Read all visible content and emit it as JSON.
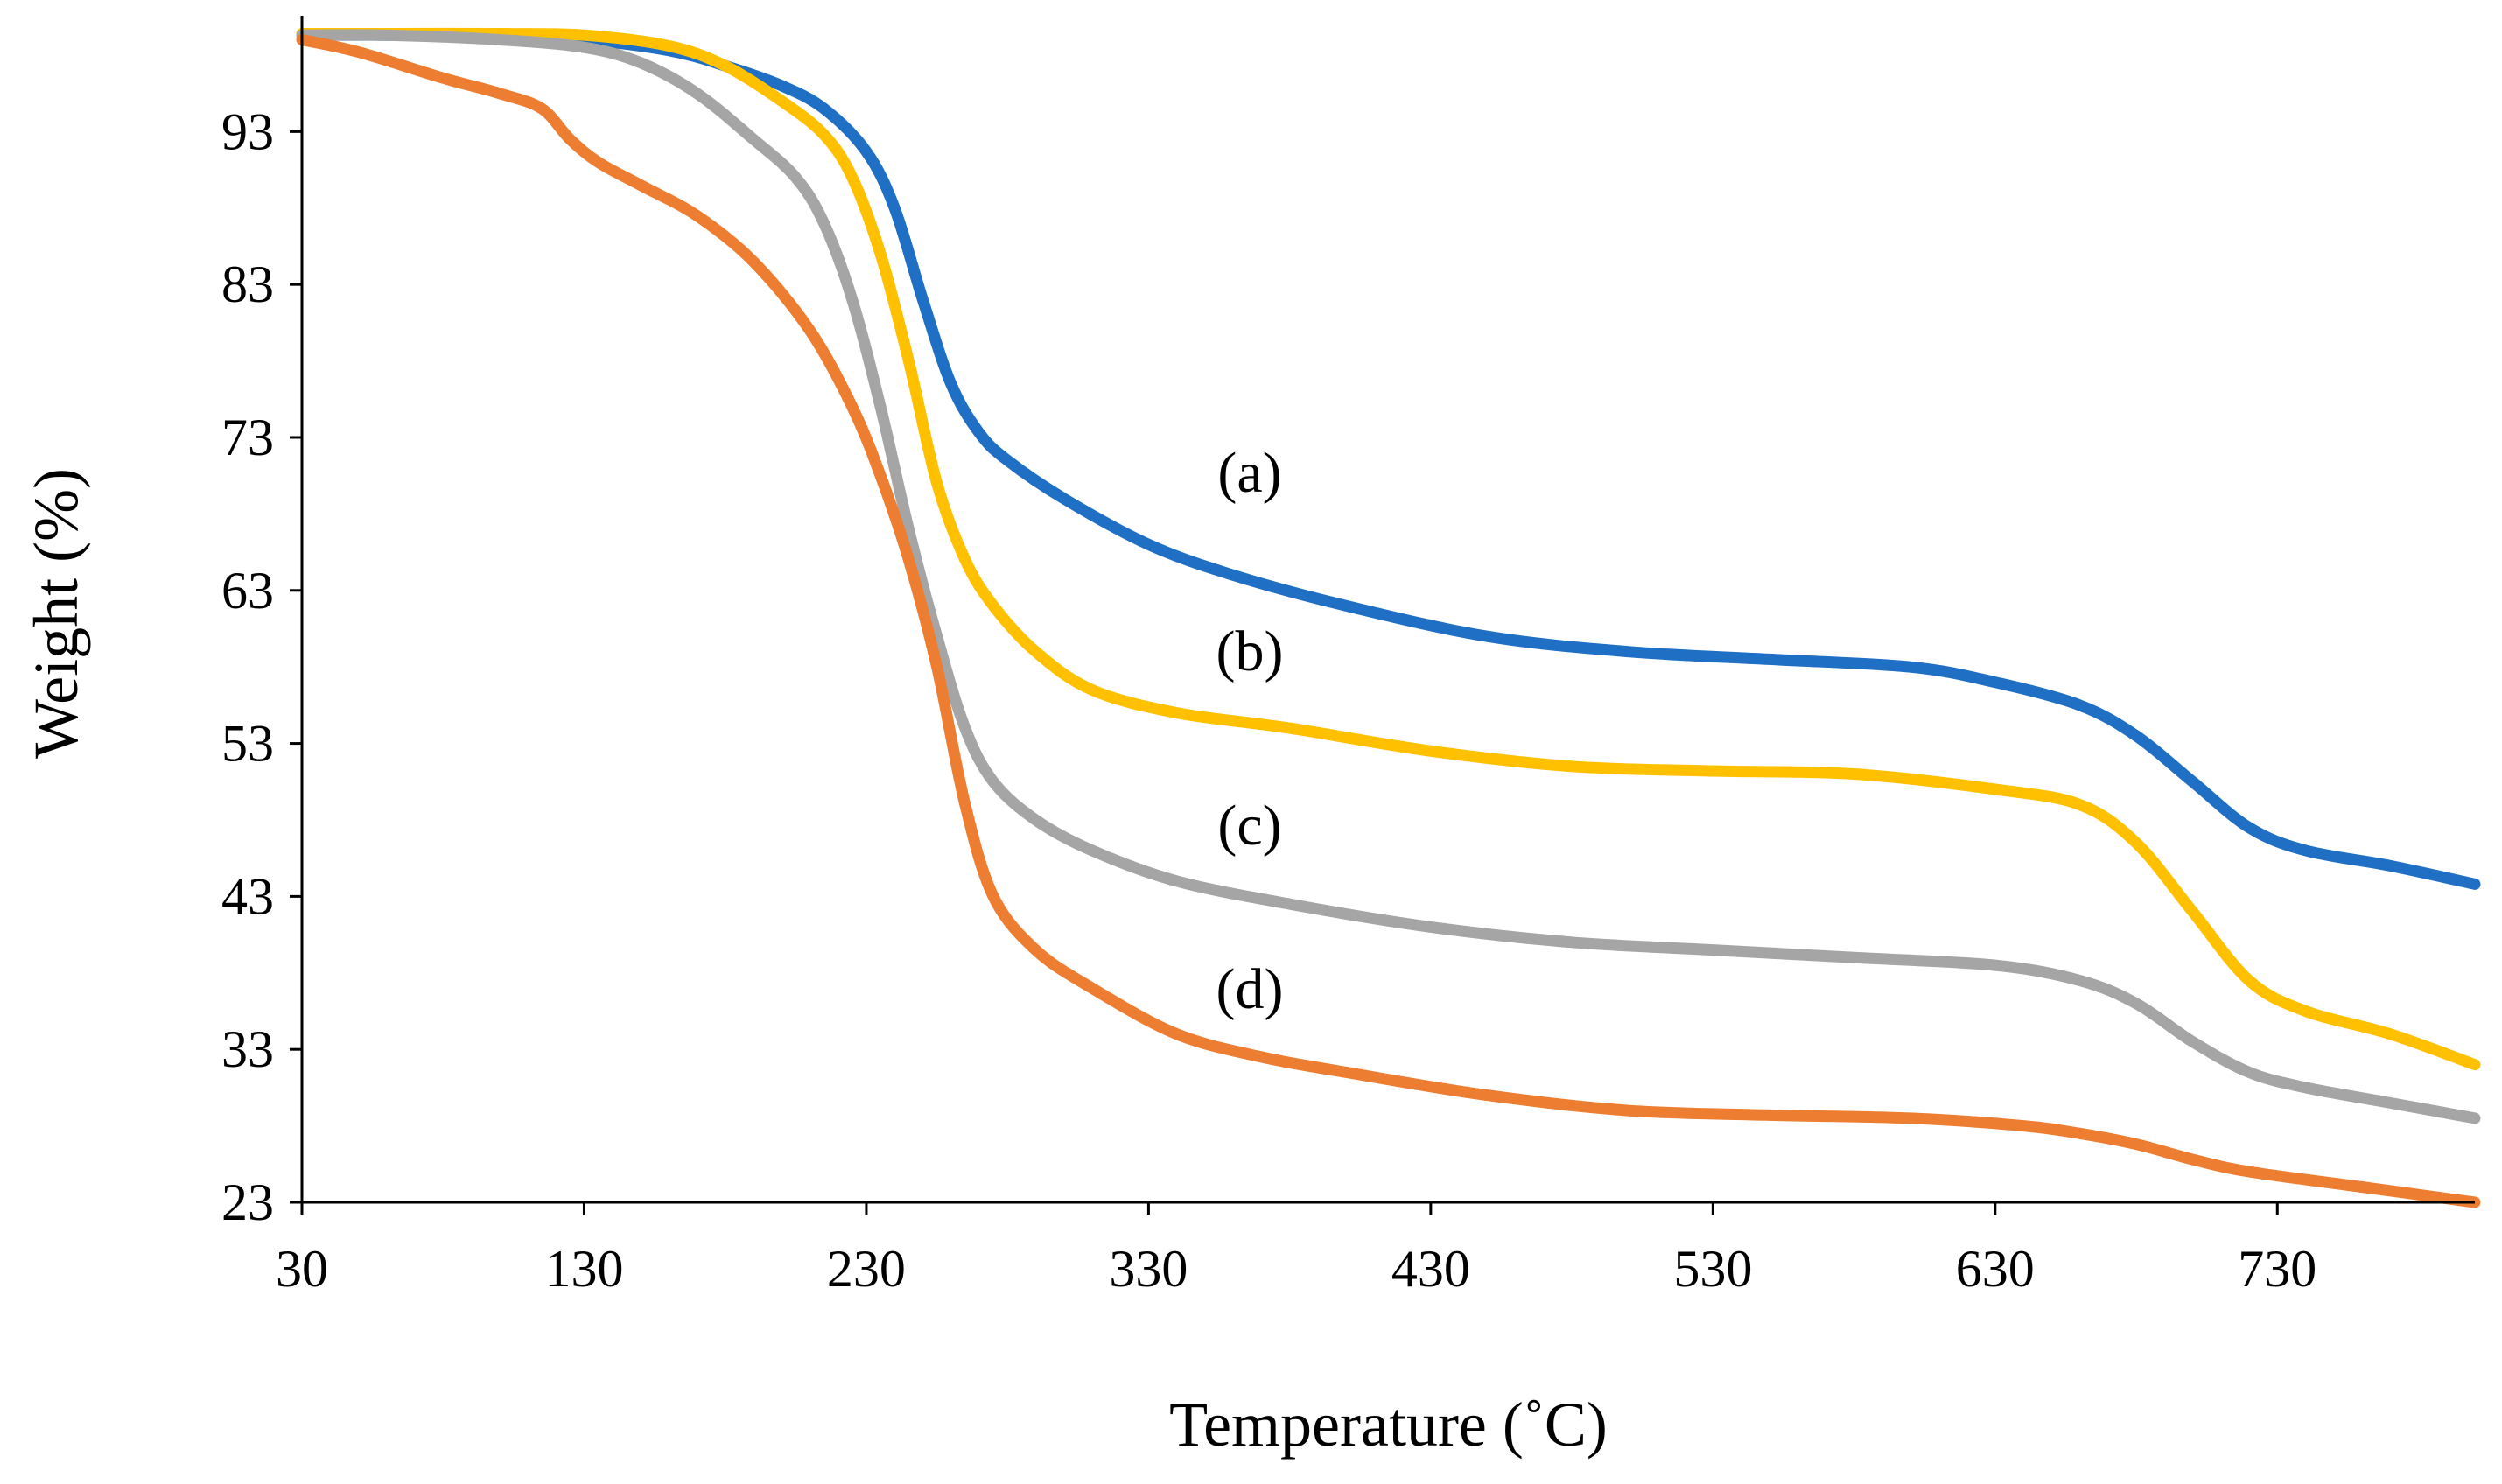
{
  "chart_data": {
    "type": "line",
    "title": "",
    "xlabel": "Temperature (˚C)",
    "ylabel": "Weight (%)",
    "xlim": [
      30,
      800
    ],
    "ylim": [
      23,
      100
    ],
    "x_ticks": [
      "30",
      "130",
      "230",
      "330",
      "430",
      "530",
      "630",
      "730"
    ],
    "y_ticks": [
      "23",
      "33",
      "43",
      "53",
      "63",
      "73",
      "83",
      "93"
    ],
    "grid": false,
    "legend": "none",
    "series": [
      {
        "name": "(a)",
        "color": "#1F6FC5",
        "x": [
          30,
          60,
          100,
          130,
          160,
          180,
          200,
          215,
          230,
          240,
          250,
          260,
          270,
          280,
          300,
          330,
          360,
          400,
          450,
          500,
          550,
          600,
          630,
          660,
          680,
          700,
          720,
          740,
          770,
          800
        ],
        "y": [
          99.3,
          99.3,
          99.2,
          99.0,
          98.3,
          97.3,
          96.0,
          94.5,
          91.7,
          88.0,
          82.0,
          76.5,
          73.3,
          71.5,
          69.0,
          66.0,
          64.0,
          62.0,
          60.0,
          59.0,
          58.5,
          58.0,
          57.0,
          55.5,
          53.5,
          50.5,
          47.5,
          46.0,
          45.0,
          43.8
        ]
      },
      {
        "name": "(b)",
        "color": "#FFC000",
        "x": [
          30,
          60,
          100,
          130,
          160,
          180,
          200,
          215,
          225,
          235,
          245,
          255,
          265,
          275,
          290,
          310,
          340,
          380,
          430,
          480,
          530,
          580,
          630,
          660,
          680,
          700,
          720,
          740,
          770,
          800
        ],
        "y": [
          99.4,
          99.4,
          99.4,
          99.3,
          98.6,
          97.3,
          95.0,
          92.8,
          90.0,
          85.0,
          78.0,
          70.0,
          65.0,
          62.0,
          59.0,
          56.5,
          55.0,
          54.0,
          52.5,
          51.5,
          51.2,
          51.0,
          50.0,
          49.0,
          46.5,
          42.0,
          37.5,
          35.5,
          34.0,
          32.0
        ]
      },
      {
        "name": "(c)",
        "color": "#A5A5A5",
        "x": [
          30,
          60,
          100,
          130,
          150,
          170,
          190,
          205,
          215,
          225,
          235,
          245,
          255,
          265,
          275,
          290,
          310,
          340,
          380,
          430,
          480,
          530,
          580,
          630,
          660,
          680,
          700,
          720,
          740,
          770,
          800
        ],
        "y": [
          99.3,
          99.3,
          99.0,
          98.5,
          97.5,
          95.5,
          92.5,
          90.0,
          87.0,
          82.0,
          75.0,
          67.0,
          60.0,
          54.0,
          50.5,
          48.0,
          46.0,
          44.0,
          42.5,
          41.0,
          40.0,
          39.5,
          39.0,
          38.5,
          37.5,
          36.0,
          33.5,
          31.5,
          30.5,
          29.5,
          28.5
        ]
      },
      {
        "name": "(d)",
        "color": "#ED7D31",
        "x": [
          30,
          50,
          80,
          100,
          115,
          125,
          135,
          150,
          170,
          190,
          210,
          225,
          235,
          245,
          255,
          265,
          275,
          290,
          310,
          340,
          370,
          400,
          450,
          500,
          550,
          600,
          640,
          660,
          680,
          700,
          720,
          760,
          800
        ],
        "y": [
          99.0,
          98.2,
          96.5,
          95.5,
          94.5,
          92.5,
          91.0,
          89.5,
          87.5,
          84.5,
          80.0,
          75.0,
          70.5,
          65.0,
          58.0,
          49.0,
          43.0,
          39.5,
          37.0,
          34.0,
          32.5,
          31.5,
          30.0,
          29.0,
          28.7,
          28.5,
          28.0,
          27.5,
          26.8,
          25.8,
          25.0,
          24.0,
          23.0
        ]
      }
    ]
  }
}
